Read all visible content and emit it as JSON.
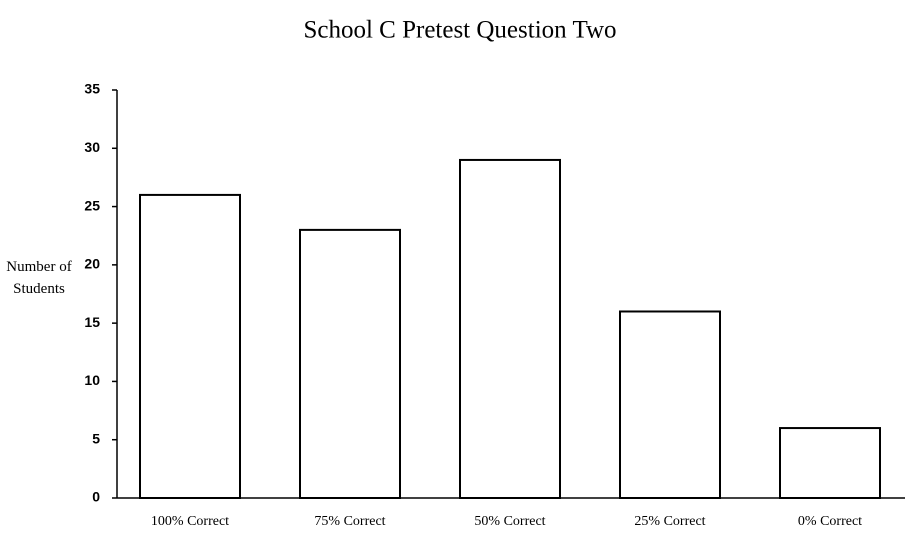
{
  "chart_data": {
    "type": "bar",
    "title": "School C Pretest Question Two",
    "y_label": "Number of Students",
    "categories": [
      "100% Correct",
      "75% Correct",
      "50% Correct",
      "25% Correct",
      "0% Correct"
    ],
    "values": [
      26,
      23,
      29,
      16,
      6
    ],
    "color": "#ffffff",
    "ylim": [
      0,
      35
    ],
    "yticks": [
      0,
      5,
      10,
      15,
      20,
      25,
      30,
      35
    ],
    "grid": false
  }
}
